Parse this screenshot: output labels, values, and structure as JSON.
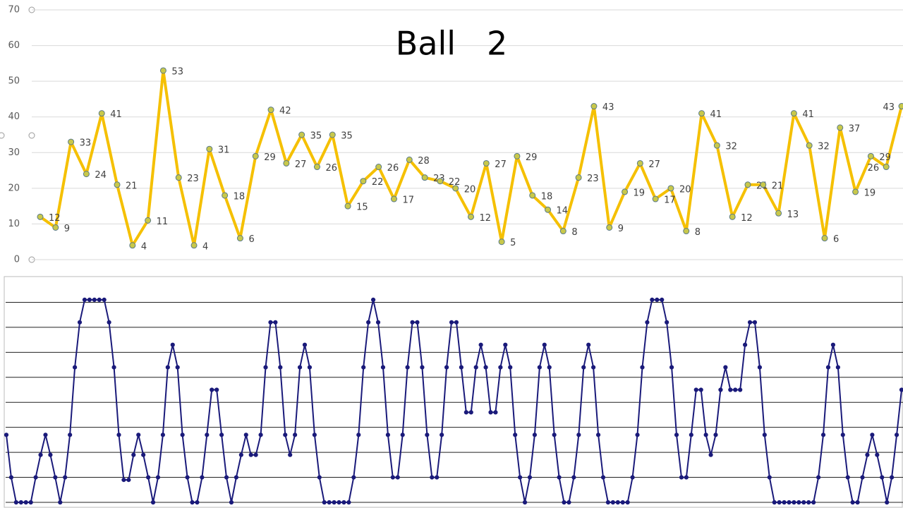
{
  "chart_data": [
    {
      "type": "line",
      "title": "Ball   2",
      "color": "#f5c000",
      "marker_color": "#c8c84a",
      "values": [
        12,
        9,
        33,
        24,
        41,
        21,
        4,
        11,
        53,
        23,
        4,
        31,
        18,
        6,
        29,
        42,
        27,
        35,
        26,
        35,
        15,
        22,
        26,
        17,
        28,
        23,
        22,
        20,
        12,
        27,
        5,
        29,
        18,
        14,
        8,
        23,
        43,
        9,
        19,
        27,
        17,
        20,
        8,
        41,
        32,
        12,
        21,
        21,
        13,
        41,
        32,
        6,
        37,
        19,
        29,
        26,
        43
      ],
      "ylim": [
        0,
        70
      ],
      "yticks": [
        0,
        10,
        20,
        30,
        40,
        50,
        60,
        70
      ],
      "grid": true,
      "data_labels": true
    },
    {
      "type": "line",
      "color": "#1a1a7a",
      "values": [
        2.7,
        1,
        0,
        0,
        0,
        0,
        1,
        1.9,
        2.7,
        1.9,
        1,
        0,
        1,
        2.7,
        5.4,
        7.2,
        8.1,
        8.1,
        8.1,
        8.1,
        8.1,
        7.2,
        5.4,
        2.7,
        0.9,
        0.9,
        1.9,
        2.7,
        1.9,
        1,
        0,
        1,
        2.7,
        5.4,
        6.3,
        5.4,
        2.7,
        1,
        0,
        0,
        1,
        2.7,
        4.5,
        4.5,
        2.7,
        1,
        0,
        1,
        1.9,
        2.7,
        1.9,
        1.9,
        2.7,
        5.4,
        7.2,
        7.2,
        5.4,
        2.7,
        1.9,
        2.7,
        5.4,
        6.3,
        5.4,
        2.7,
        1,
        0,
        0,
        0,
        0,
        0,
        0,
        1,
        2.7,
        5.4,
        7.2,
        8.1,
        7.2,
        5.4,
        2.7,
        1,
        1,
        2.7,
        5.4,
        7.2,
        7.2,
        5.4,
        2.7,
        1,
        1,
        2.7,
        5.4,
        7.2,
        7.2,
        5.4,
        3.6,
        3.6,
        5.4,
        6.3,
        5.4,
        3.6,
        3.6,
        5.4,
        6.3,
        5.4,
        2.7,
        1,
        0,
        1,
        2.7,
        5.4,
        6.3,
        5.4,
        2.7,
        1,
        0,
        0,
        1,
        2.7,
        5.4,
        6.3,
        5.4,
        2.7,
        1,
        0,
        0,
        0,
        0,
        0,
        1,
        2.7,
        5.4,
        7.2,
        8.1,
        8.1,
        8.1,
        7.2,
        5.4,
        2.7,
        1,
        1,
        2.7,
        4.5,
        4.5,
        2.7,
        1.9,
        2.7,
        4.5,
        5.4,
        4.5,
        4.5,
        4.5,
        6.3,
        7.2,
        7.2,
        5.4,
        2.7,
        1,
        0,
        0,
        0,
        0,
        0,
        0,
        0,
        0,
        0,
        1,
        2.7,
        5.4,
        6.3,
        5.4,
        2.7,
        1,
        0,
        0,
        1,
        1.9,
        2.7,
        1.9,
        1,
        0,
        1,
        2.7,
        4.5
      ],
      "ylim": [
        0,
        9
      ],
      "yticks": [
        0,
        1,
        2,
        3,
        4,
        5,
        6,
        7,
        8
      ],
      "grid": true,
      "tick_labels": false
    }
  ]
}
